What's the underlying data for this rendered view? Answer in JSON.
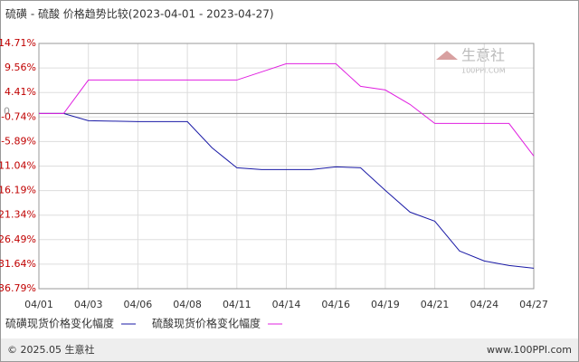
{
  "chart_data": {
    "type": "line",
    "title": "硫磺 - 硫酸 价格趋势比较(2023-04-01 - 2023-04-27)",
    "categories": [
      "04/01",
      null,
      "04/03",
      null,
      "04/06",
      null,
      "04/08",
      null,
      "04/11",
      null,
      "04/14",
      null,
      "04/16",
      null,
      "04/19",
      null,
      "04/21",
      null,
      "04/24",
      null,
      "04/27"
    ],
    "series": [
      {
        "name": "硫磺现货价格变化幅度",
        "color": "#1a1aa6",
        "values": [
          0,
          0,
          -1.52,
          -1.61,
          -1.71,
          -1.71,
          -1.71,
          -7.22,
          -11.4,
          -11.78,
          -11.78,
          -11.78,
          -11.21,
          -11.4,
          -16.15,
          -20.71,
          -22.61,
          -28.88,
          -30.97,
          -31.92,
          -32.49
        ]
      },
      {
        "name": "硫酸现货价格变化幅度",
        "color": "#e020e0",
        "values": [
          0,
          0,
          7.03,
          7.03,
          7.03,
          7.03,
          7.03,
          7.03,
          7.03,
          8.74,
          10.45,
          10.45,
          10.45,
          5.7,
          4.94,
          1.9,
          -2.09,
          -2.09,
          -2.09,
          -2.09,
          -8.93
        ]
      }
    ],
    "ylim": [
      -36.79,
      14.71
    ],
    "yticks": [
      {
        "value": 14.71,
        "label": "14.71%"
      },
      {
        "value": 9.56,
        "label": "9.56%"
      },
      {
        "value": 4.41,
        "label": "4.41%"
      },
      {
        "value": -0.74,
        "label": "-0.74%"
      },
      {
        "value": -5.89,
        "label": "-5.89%"
      },
      {
        "value": -11.04,
        "label": "-11.04%"
      },
      {
        "value": -16.19,
        "label": "-16.19%"
      },
      {
        "value": -21.34,
        "label": "-21.34%"
      },
      {
        "value": -26.49,
        "label": "-26.49%"
      },
      {
        "value": -31.64,
        "label": "-31.64%"
      },
      {
        "value": -36.79,
        "label": "-36.79%"
      }
    ],
    "baseline": {
      "value": 0,
      "label": "0"
    },
    "grid": true,
    "watermark": {
      "name": "生意社",
      "site": "100PPI.COM"
    },
    "footer": {
      "left": "© 2025.05 生意社",
      "right": "www.100PPI.com"
    }
  }
}
